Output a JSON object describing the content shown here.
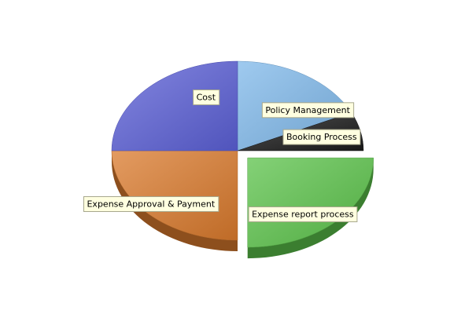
{
  "chart_data": {
    "type": "pie",
    "style": "3d-exploded",
    "slices": [
      {
        "label": "Policy Management",
        "value": 18,
        "color": "#7fb8ea"
      },
      {
        "label": "Booking Process",
        "value": 7,
        "color": "#1a1a1a"
      },
      {
        "label": "Expense report process",
        "value": 25,
        "color": "#5bc24a",
        "exploded": true
      },
      {
        "label": "Expense Approval & Payment",
        "value": 25,
        "color": "#d97a2c"
      },
      {
        "label": "Cost",
        "value": 25,
        "color": "#5b5fd6"
      }
    ]
  }
}
